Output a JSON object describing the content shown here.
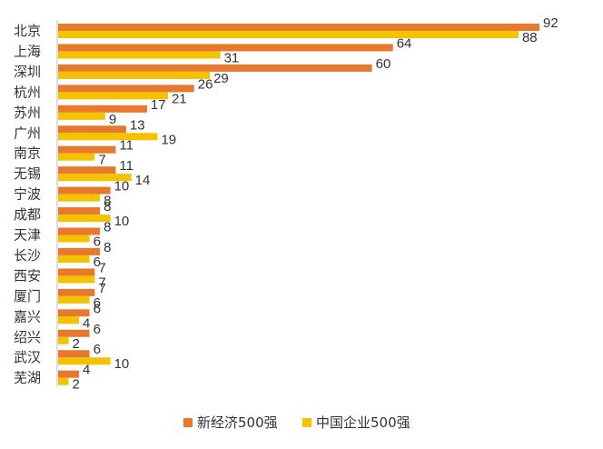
{
  "chart_data": {
    "type": "bar",
    "orientation": "horizontal",
    "title": "",
    "xlabel": "",
    "ylabel": "",
    "categories": [
      "北京",
      "上海",
      "深圳",
      "杭州",
      "苏州",
      "广州",
      "南京",
      "无锡",
      "宁波",
      "成都",
      "天津",
      "长沙",
      "西安",
      "厦门",
      "嘉兴",
      "绍兴",
      "武汉",
      "芜湖"
    ],
    "series": [
      {
        "name": "新经济500强",
        "color": "#E8792C",
        "values": [
          92,
          64,
          60,
          26,
          17,
          13,
          11,
          11,
          10,
          8,
          8,
          8,
          7,
          7,
          6,
          6,
          6,
          4
        ]
      },
      {
        "name": "中国企业500强",
        "color": "#F5C200",
        "values": [
          88,
          31,
          29,
          21,
          9,
          19,
          7,
          14,
          8,
          10,
          6,
          6,
          7,
          6,
          4,
          2,
          10,
          2
        ]
      }
    ],
    "xlim": [
      0,
      92
    ],
    "grid": false,
    "legend_position": "bottom"
  }
}
